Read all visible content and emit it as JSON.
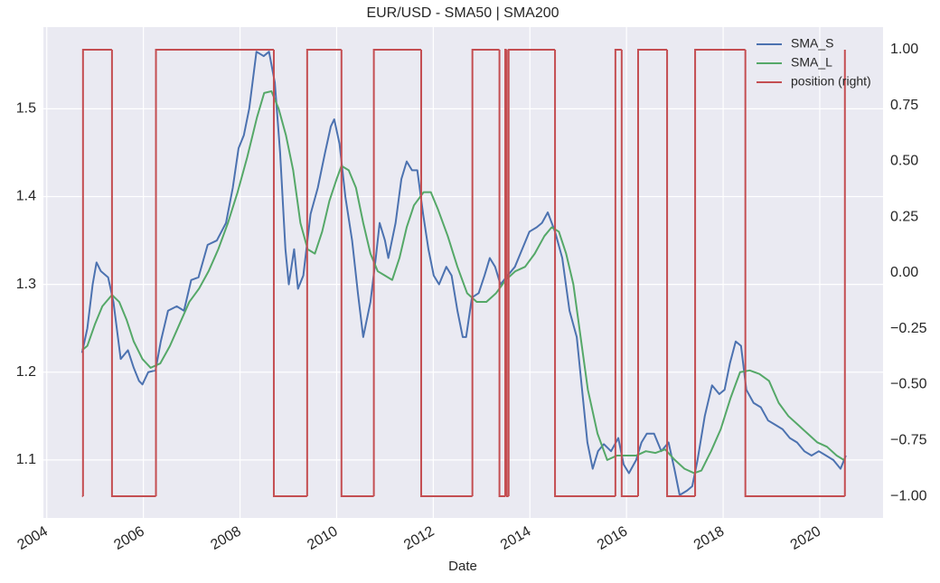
{
  "chart_data": {
    "type": "line",
    "title": "EUR/USD - SMA50 | SMA200",
    "xlabel": "Date",
    "xlim": [
      2003.93,
      2021.31
    ],
    "xticks": [
      2004,
      2006,
      2008,
      2010,
      2012,
      2014,
      2016,
      2018,
      2020
    ],
    "ylim": [
      1.034,
      1.593
    ],
    "yticks": [
      1.1,
      1.2,
      1.3,
      1.4,
      1.5
    ],
    "y2lim": [
      -1.097,
      1.101
    ],
    "y2ticks": [
      {
        "value": -1,
        "label": "−1.00"
      },
      {
        "value": -0.75,
        "label": "−0.75"
      },
      {
        "value": -0.5,
        "label": "−0.50"
      },
      {
        "value": -0.25,
        "label": "−0.25"
      },
      {
        "value": 0,
        "label": "0.00"
      },
      {
        "value": 0.25,
        "label": "0.25"
      },
      {
        "value": 0.5,
        "label": "0.50"
      },
      {
        "value": 0.75,
        "label": "0.75"
      },
      {
        "value": 1,
        "label": "1.00"
      }
    ],
    "grid": true,
    "legend": "upper right",
    "series": [
      {
        "name": "SMA_S",
        "color": "#4c72b0",
        "x": [
          2004.73,
          2004.84,
          2004.95,
          2005.03,
          2005.12,
          2005.27,
          2005.38,
          2005.53,
          2005.68,
          2005.8,
          2005.91,
          2005.98,
          2006.1,
          2006.25,
          2006.36,
          2006.51,
          2006.69,
          2006.84,
          2006.99,
          2007.14,
          2007.33,
          2007.52,
          2007.71,
          2007.85,
          2007.97,
          2008.08,
          2008.19,
          2008.34,
          2008.49,
          2008.6,
          2008.72,
          2008.83,
          2008.94,
          2009.01,
          2009.12,
          2009.2,
          2009.31,
          2009.46,
          2009.61,
          2009.76,
          2009.88,
          2009.95,
          2010.06,
          2010.18,
          2010.32,
          2010.44,
          2010.55,
          2010.7,
          2010.81,
          2010.89,
          2011.0,
          2011.07,
          2011.22,
          2011.34,
          2011.45,
          2011.56,
          2011.67,
          2011.79,
          2011.9,
          2012.01,
          2012.12,
          2012.27,
          2012.38,
          2012.5,
          2012.61,
          2012.68,
          2012.8,
          2012.94,
          2013.06,
          2013.17,
          2013.28,
          2013.39,
          2013.54,
          2013.69,
          2013.84,
          2013.99,
          2014.14,
          2014.25,
          2014.37,
          2014.52,
          2014.67,
          2014.82,
          2014.97,
          2015.08,
          2015.19,
          2015.3,
          2015.41,
          2015.53,
          2015.68,
          2015.83,
          2015.94,
          2016.05,
          2016.2,
          2016.31,
          2016.42,
          2016.57,
          2016.72,
          2016.87,
          2016.99,
          2017.1,
          2017.25,
          2017.36,
          2017.47,
          2017.62,
          2017.77,
          2017.92,
          2018.03,
          2018.14,
          2018.26,
          2018.37,
          2018.48,
          2018.63,
          2018.78,
          2018.93,
          2019.08,
          2019.23,
          2019.38,
          2019.53,
          2019.68,
          2019.83,
          2019.98,
          2020.13,
          2020.28,
          2020.43,
          2020.54
        ],
        "values": [
          1.222,
          1.25,
          1.3,
          1.325,
          1.315,
          1.308,
          1.28,
          1.215,
          1.225,
          1.205,
          1.19,
          1.186,
          1.2,
          1.202,
          1.235,
          1.27,
          1.275,
          1.27,
          1.305,
          1.308,
          1.345,
          1.35,
          1.37,
          1.41,
          1.455,
          1.47,
          1.5,
          1.565,
          1.56,
          1.565,
          1.53,
          1.45,
          1.34,
          1.3,
          1.34,
          1.295,
          1.31,
          1.38,
          1.41,
          1.45,
          1.48,
          1.488,
          1.46,
          1.4,
          1.35,
          1.29,
          1.24,
          1.28,
          1.33,
          1.37,
          1.35,
          1.33,
          1.37,
          1.42,
          1.44,
          1.43,
          1.43,
          1.38,
          1.34,
          1.31,
          1.3,
          1.32,
          1.31,
          1.27,
          1.24,
          1.24,
          1.285,
          1.29,
          1.31,
          1.33,
          1.32,
          1.3,
          1.31,
          1.32,
          1.34,
          1.36,
          1.365,
          1.37,
          1.382,
          1.36,
          1.33,
          1.27,
          1.24,
          1.18,
          1.12,
          1.09,
          1.11,
          1.118,
          1.11,
          1.125,
          1.095,
          1.085,
          1.1,
          1.12,
          1.13,
          1.13,
          1.11,
          1.12,
          1.09,
          1.06,
          1.065,
          1.07,
          1.1,
          1.15,
          1.185,
          1.175,
          1.18,
          1.21,
          1.235,
          1.23,
          1.18,
          1.165,
          1.16,
          1.145,
          1.14,
          1.135,
          1.125,
          1.12,
          1.11,
          1.105,
          1.11,
          1.105,
          1.1,
          1.09,
          1.105
        ]
      },
      {
        "name": "SMA_L",
        "color": "#55a868",
        "x": [
          2004.73,
          2004.84,
          2005.0,
          2005.15,
          2005.35,
          2005.5,
          2005.65,
          2005.8,
          2005.98,
          2006.15,
          2006.35,
          2006.55,
          2006.75,
          2006.95,
          2007.15,
          2007.35,
          2007.55,
          2007.75,
          2007.95,
          2008.15,
          2008.35,
          2008.5,
          2008.65,
          2008.8,
          2008.95,
          2009.1,
          2009.25,
          2009.4,
          2009.55,
          2009.7,
          2009.85,
          2010.0,
          2010.1,
          2010.25,
          2010.4,
          2010.55,
          2010.7,
          2010.85,
          2011.0,
          2011.15,
          2011.3,
          2011.45,
          2011.6,
          2011.8,
          2011.95,
          2012.1,
          2012.3,
          2012.5,
          2012.7,
          2012.9,
          2013.1,
          2013.3,
          2013.5,
          2013.7,
          2013.9,
          2014.1,
          2014.3,
          2014.45,
          2014.6,
          2014.75,
          2014.9,
          2015.05,
          2015.2,
          2015.4,
          2015.6,
          2015.8,
          2016.0,
          2016.2,
          2016.4,
          2016.6,
          2016.8,
          2017.0,
          2017.2,
          2017.4,
          2017.55,
          2017.75,
          2017.95,
          2018.15,
          2018.35,
          2018.55,
          2018.75,
          2018.95,
          2019.15,
          2019.35,
          2019.55,
          2019.75,
          2019.95,
          2020.15,
          2020.35,
          2020.5
        ],
        "values": [
          1.225,
          1.23,
          1.255,
          1.275,
          1.288,
          1.28,
          1.26,
          1.235,
          1.215,
          1.205,
          1.21,
          1.23,
          1.255,
          1.28,
          1.295,
          1.315,
          1.34,
          1.37,
          1.405,
          1.445,
          1.49,
          1.518,
          1.52,
          1.5,
          1.47,
          1.43,
          1.37,
          1.34,
          1.335,
          1.36,
          1.395,
          1.42,
          1.435,
          1.43,
          1.41,
          1.37,
          1.335,
          1.315,
          1.31,
          1.305,
          1.33,
          1.365,
          1.39,
          1.405,
          1.405,
          1.385,
          1.355,
          1.32,
          1.29,
          1.28,
          1.28,
          1.29,
          1.305,
          1.315,
          1.32,
          1.335,
          1.355,
          1.365,
          1.36,
          1.335,
          1.3,
          1.24,
          1.18,
          1.13,
          1.1,
          1.105,
          1.105,
          1.105,
          1.11,
          1.108,
          1.112,
          1.1,
          1.09,
          1.085,
          1.088,
          1.11,
          1.135,
          1.17,
          1.2,
          1.202,
          1.198,
          1.19,
          1.165,
          1.15,
          1.14,
          1.13,
          1.12,
          1.115,
          1.105,
          1.1
        ]
      },
      {
        "name": "position (right)",
        "color": "#c44e52",
        "axis": "y2",
        "step": "post",
        "x": [
          2004.73,
          2004.75,
          2005.35,
          2006.26,
          2008.7,
          2009.39,
          2010.1,
          2010.77,
          2011.75,
          2012.81,
          2013.37,
          2013.49,
          2013.52,
          2013.56,
          2014.52,
          2015.77,
          2015.9,
          2016.24,
          2016.84,
          2017.42,
          2018.46,
          2020.52
        ],
        "values": [
          -1,
          1,
          -1,
          1,
          -1,
          1,
          -1,
          1,
          -1,
          1,
          -1,
          1,
          -1,
          1,
          -1,
          1,
          -1,
          1,
          -1,
          1,
          -1,
          1
        ]
      }
    ]
  }
}
